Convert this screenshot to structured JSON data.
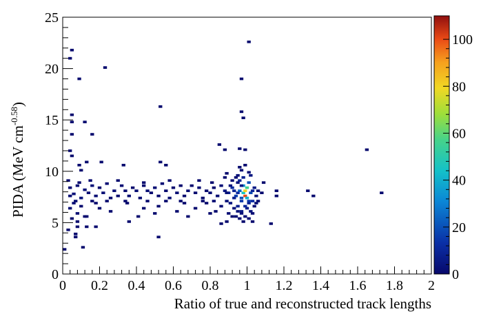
{
  "chart_data": {
    "type": "heatmap",
    "title": "",
    "xlabel": "Ratio of true and reconstructed track lengths",
    "ylabel": "PIDA (MeV cm",
    "ylabel_sup": "-0.58",
    "ylabel_close": ")",
    "xlim": [
      0,
      2
    ],
    "ylim": [
      0,
      25
    ],
    "x_ticks": [
      "0",
      "0.2",
      "0.4",
      "0.6",
      "0.8",
      "1",
      "1.2",
      "1.4",
      "1.6",
      "1.8",
      "2"
    ],
    "x_tick_values": [
      0,
      0.2,
      0.4,
      0.6,
      0.8,
      1.0,
      1.2,
      1.4,
      1.6,
      1.8,
      2.0
    ],
    "y_ticks": [
      "0",
      "5",
      "10",
      "15",
      "20",
      "25"
    ],
    "y_tick_values": [
      0,
      5,
      10,
      15,
      20,
      25
    ],
    "colorbar": {
      "range": [
        0,
        110
      ],
      "ticks": [
        "0",
        "20",
        "40",
        "60",
        "80",
        "100"
      ],
      "tick_values": [
        0,
        20,
        40,
        60,
        80,
        100
      ]
    },
    "bin_size": {
      "x": 0.02,
      "y": 0.25
    },
    "grid": false,
    "points": [
      [
        0.01,
        2.4,
        1
      ],
      [
        0.04,
        21.0,
        1
      ],
      [
        0.05,
        21.8,
        1
      ],
      [
        0.09,
        19.0,
        1
      ],
      [
        0.23,
        20.1,
        1
      ],
      [
        0.53,
        16.3,
        1
      ],
      [
        0.97,
        19.0,
        1
      ],
      [
        1.01,
        22.6,
        1
      ],
      [
        0.97,
        15.8,
        1
      ],
      [
        0.98,
        15.2,
        1
      ],
      [
        0.05,
        15.5,
        1
      ],
      [
        0.05,
        14.8,
        1
      ],
      [
        0.12,
        14.8,
        1
      ],
      [
        0.16,
        13.6,
        1
      ],
      [
        0.05,
        13.6,
        1
      ],
      [
        0.04,
        12.0,
        1
      ],
      [
        0.05,
        11.5,
        1
      ],
      [
        0.09,
        10.6,
        1
      ],
      [
        0.13,
        10.9,
        1
      ],
      [
        0.21,
        10.9,
        1
      ],
      [
        0.33,
        10.6,
        1
      ],
      [
        0.53,
        10.9,
        1
      ],
      [
        0.56,
        10.6,
        1
      ],
      [
        0.85,
        12.6,
        1
      ],
      [
        0.88,
        12.1,
        1
      ],
      [
        0.96,
        12.2,
        1
      ],
      [
        0.99,
        12.1,
        1
      ],
      [
        1.65,
        12.1,
        1
      ],
      [
        0.89,
        9.8,
        1
      ],
      [
        0.1,
        10.1,
        1
      ],
      [
        0.04,
        8.4,
        2
      ],
      [
        0.06,
        7.8,
        3
      ],
      [
        0.08,
        8.6,
        2
      ],
      [
        0.1,
        7.4,
        4
      ],
      [
        0.12,
        8.2,
        3
      ],
      [
        0.14,
        7.9,
        2
      ],
      [
        0.16,
        8.6,
        3
      ],
      [
        0.18,
        7.6,
        2
      ],
      [
        0.2,
        8.4,
        1
      ],
      [
        0.22,
        7.9,
        2
      ],
      [
        0.24,
        8.8,
        2
      ],
      [
        0.26,
        7.4,
        1
      ],
      [
        0.28,
        8.1,
        2
      ],
      [
        0.3,
        7.6,
        1
      ],
      [
        0.32,
        8.6,
        2
      ],
      [
        0.34,
        8.1,
        1
      ],
      [
        0.36,
        7.6,
        2
      ],
      [
        0.38,
        8.4,
        1
      ],
      [
        0.4,
        8.1,
        2
      ],
      [
        0.42,
        7.4,
        1
      ],
      [
        0.44,
        8.6,
        1
      ],
      [
        0.46,
        8.1,
        2
      ],
      [
        0.48,
        7.9,
        1
      ],
      [
        0.5,
        8.4,
        2
      ],
      [
        0.52,
        7.6,
        1
      ],
      [
        0.54,
        8.8,
        2
      ],
      [
        0.56,
        8.1,
        1
      ],
      [
        0.58,
        7.4,
        2
      ],
      [
        0.6,
        8.4,
        1
      ],
      [
        0.62,
        7.9,
        2
      ],
      [
        0.64,
        8.6,
        1
      ],
      [
        0.66,
        7.6,
        1
      ],
      [
        0.68,
        8.1,
        2
      ],
      [
        0.7,
        8.6,
        1
      ],
      [
        0.72,
        7.9,
        1
      ],
      [
        0.74,
        8.4,
        2
      ],
      [
        0.76,
        7.4,
        1
      ],
      [
        0.78,
        8.1,
        1
      ],
      [
        0.8,
        7.9,
        2
      ],
      [
        0.82,
        8.4,
        1
      ],
      [
        0.84,
        7.6,
        2
      ],
      [
        0.86,
        8.6,
        3
      ],
      [
        0.88,
        8.1,
        5
      ],
      [
        0.9,
        7.9,
        8
      ],
      [
        0.92,
        8.4,
        12
      ],
      [
        0.94,
        7.6,
        16
      ],
      [
        0.96,
        8.1,
        25
      ],
      [
        0.98,
        7.9,
        45
      ],
      [
        0.99,
        7.6,
        100
      ],
      [
        0.99,
        8.1,
        80
      ],
      [
        1.0,
        8.4,
        55
      ],
      [
        1.0,
        7.4,
        40
      ],
      [
        0.98,
        8.6,
        35
      ],
      [
        1.01,
        8.9,
        20
      ],
      [
        1.02,
        7.9,
        18
      ],
      [
        1.03,
        7.1,
        12
      ],
      [
        0.97,
        7.1,
        15
      ],
      [
        0.96,
        9.1,
        10
      ],
      [
        0.98,
        9.4,
        8
      ],
      [
        1.02,
        9.6,
        5
      ],
      [
        1.04,
        8.4,
        6
      ],
      [
        1.05,
        7.6,
        4
      ],
      [
        0.95,
        6.6,
        8
      ],
      [
        0.97,
        6.1,
        6
      ],
      [
        1.0,
        6.4,
        7
      ],
      [
        1.02,
        6.1,
        4
      ],
      [
        0.93,
        6.4,
        4
      ],
      [
        0.91,
        6.9,
        5
      ],
      [
        0.89,
        7.1,
        3
      ],
      [
        0.99,
        5.6,
        3
      ],
      [
        1.03,
        5.9,
        2
      ],
      [
        0.96,
        5.4,
        2
      ],
      [
        1.06,
        8.1,
        2
      ],
      [
        1.08,
        7.9,
        1
      ],
      [
        0.97,
        10.1,
        2
      ],
      [
        0.99,
        10.6,
        1
      ],
      [
        1.03,
        5.1,
        1
      ],
      [
        0.92,
        5.6,
        1
      ],
      [
        0.95,
        9.6,
        3
      ],
      [
        1.01,
        9.9,
        2
      ],
      [
        0.04,
        6.4,
        2
      ],
      [
        0.06,
        6.9,
        2
      ],
      [
        0.08,
        5.9,
        2
      ],
      [
        0.1,
        6.6,
        1
      ],
      [
        0.12,
        5.6,
        1
      ],
      [
        0.05,
        5.4,
        1
      ],
      [
        0.08,
        5.1,
        1
      ],
      [
        0.13,
        5.6,
        1
      ],
      [
        0.18,
        6.9,
        1
      ],
      [
        0.26,
        6.1,
        1
      ],
      [
        0.35,
        6.9,
        1
      ],
      [
        0.44,
        6.4,
        1
      ],
      [
        0.52,
        6.6,
        1
      ],
      [
        0.62,
        6.1,
        1
      ],
      [
        0.66,
        6.9,
        1
      ],
      [
        0.72,
        6.4,
        1
      ],
      [
        0.78,
        6.9,
        1
      ],
      [
        0.83,
        6.1,
        1
      ],
      [
        0.86,
        6.6,
        2
      ],
      [
        0.41,
        5.6,
        1
      ],
      [
        0.5,
        5.9,
        1
      ],
      [
        0.68,
        5.6,
        1
      ],
      [
        0.8,
        5.9,
        1
      ],
      [
        0.36,
        5.1,
        1
      ],
      [
        0.2,
        6.4,
        1
      ],
      [
        0.13,
        4.6,
        1
      ],
      [
        0.03,
        4.3,
        1
      ],
      [
        0.07,
        3.9,
        1
      ],
      [
        0.07,
        3.6,
        1
      ],
      [
        0.11,
        2.6,
        1
      ],
      [
        0.18,
        4.6,
        1
      ],
      [
        0.52,
        3.6,
        1
      ],
      [
        0.86,
        4.9,
        1
      ],
      [
        1.13,
        4.9,
        1
      ],
      [
        0.08,
        4.6,
        1
      ],
      [
        0.89,
        5.1,
        1
      ],
      [
        1.16,
        7.6,
        1
      ],
      [
        1.16,
        8.1,
        1
      ],
      [
        1.33,
        8.1,
        1
      ],
      [
        1.36,
        7.6,
        1
      ],
      [
        1.73,
        7.9,
        1
      ],
      [
        1.09,
        8.9,
        1
      ],
      [
        0.92,
        9.1,
        2
      ],
      [
        0.94,
        9.4,
        2
      ],
      [
        0.96,
        10.4,
        1
      ],
      [
        0.03,
        9.1,
        1
      ],
      [
        0.04,
        7.6,
        2
      ],
      [
        0.07,
        7.1,
        2
      ],
      [
        0.09,
        8.9,
        1
      ],
      [
        0.15,
        9.1,
        1
      ],
      [
        0.3,
        9.1,
        1
      ],
      [
        0.44,
        8.9,
        1
      ],
      [
        0.58,
        9.1,
        1
      ],
      [
        0.74,
        9.1,
        1
      ],
      [
        0.81,
        8.9,
        1
      ],
      [
        0.16,
        7.1,
        1
      ],
      [
        0.24,
        7.1,
        1
      ],
      [
        0.34,
        7.1,
        1
      ],
      [
        0.46,
        7.1,
        1
      ],
      [
        0.56,
        7.1,
        1
      ],
      [
        0.64,
        7.1,
        1
      ],
      [
        0.76,
        7.1,
        1
      ],
      [
        0.82,
        7.1,
        2
      ],
      [
        0.88,
        9.4,
        1
      ],
      [
        0.9,
        5.9,
        2
      ],
      [
        0.94,
        5.6,
        2
      ],
      [
        0.98,
        5.1,
        1
      ],
      [
        1.01,
        5.4,
        2
      ],
      [
        1.04,
        6.6,
        2
      ],
      [
        1.06,
        7.1,
        1
      ],
      [
        0.95,
        8.9,
        4
      ],
      [
        0.97,
        8.6,
        6
      ],
      [
        0.93,
        8.1,
        9
      ],
      [
        0.95,
        7.9,
        12
      ],
      [
        0.97,
        7.4,
        20
      ],
      [
        1.01,
        7.1,
        15
      ],
      [
        1.03,
        8.1,
        10
      ],
      [
        1.01,
        6.9,
        9
      ],
      [
        0.99,
        6.6,
        10
      ],
      [
        0.93,
        7.4,
        8
      ],
      [
        0.91,
        8.6,
        4
      ],
      [
        0.89,
        7.9,
        3
      ],
      [
        1.05,
        6.9,
        2
      ],
      [
        0.97,
        5.9,
        3
      ],
      [
        0.95,
        6.1,
        3
      ]
    ]
  }
}
